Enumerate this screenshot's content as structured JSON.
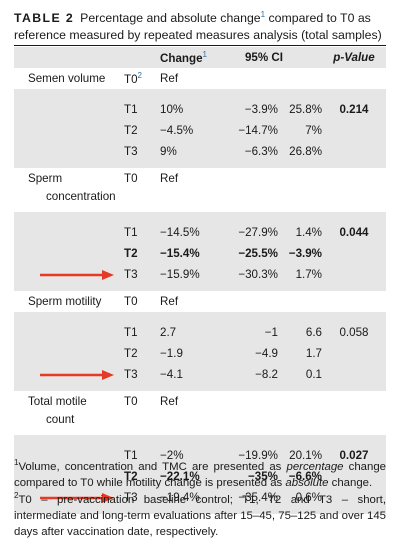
{
  "caption": {
    "label": "TABLE 2",
    "text_a": "Percentage and absolute change",
    "sup": "1",
    "text_b": " compared to T0 as reference measured by repeated measures analysis (total samples)"
  },
  "header": {
    "change": "Change",
    "change_sup": "1",
    "ci": "95% CI",
    "p": "p-Value"
  },
  "groups": [
    {
      "name": "Semen volume",
      "ref_time": "T0",
      "ref_time_sup": "2",
      "ref_label": "Ref",
      "rows": [
        {
          "time": "T1",
          "change": "10%",
          "ci_low": "−3.9%",
          "ci_high": "25.8%",
          "p": "0.214",
          "bold": false
        },
        {
          "time": "T2",
          "change": "−4.5%",
          "ci_low": "−14.7%",
          "ci_high": "7%",
          "p": "",
          "bold": false
        },
        {
          "time": "T3",
          "change": "9%",
          "ci_low": "−6.3%",
          "ci_high": "26.8%",
          "p": "",
          "bold": false
        }
      ]
    },
    {
      "name": "Sperm",
      "name2": "concentration",
      "ref_time": "T0",
      "ref_label": "Ref",
      "rows": [
        {
          "time": "T1",
          "change": "−14.5%",
          "ci_low": "−27.9%",
          "ci_high": "1.4%",
          "p": "0.044",
          "bold": false
        },
        {
          "time": "T2",
          "change": "−15.4%",
          "ci_low": "−25.5%",
          "ci_high": "−3.9%",
          "p": "",
          "bold": true
        },
        {
          "time": "T3",
          "change": "−15.9%",
          "ci_low": "−30.3%",
          "ci_high": "1.7%",
          "p": "",
          "bold": false
        }
      ]
    },
    {
      "name": "Sperm motility",
      "ref_time": "T0",
      "ref_label": "Ref",
      "rows": [
        {
          "time": "T1",
          "change": "2.7",
          "ci_low": "−1",
          "ci_high": "6.6",
          "p": "0.058",
          "bold": false
        },
        {
          "time": "T2",
          "change": "−1.9",
          "ci_low": "−4.9",
          "ci_high": "1.7",
          "p": "",
          "bold": false
        },
        {
          "time": "T3",
          "change": "−4.1",
          "ci_low": "−8.2",
          "ci_high": "0.1",
          "p": "",
          "bold": false
        }
      ]
    },
    {
      "name": "Total motile",
      "name2": "count",
      "ref_time": "T0",
      "ref_label": "Ref",
      "rows": [
        {
          "time": "T1",
          "change": "−2%",
          "ci_low": "−19.9%",
          "ci_high": "20.1%",
          "p": "0.027",
          "bold": false
        },
        {
          "time": "T2",
          "change": "−22.1%",
          "ci_low": "−35%",
          "ci_high": "−6.6%",
          "p": "",
          "bold": true
        },
        {
          "time": "T3",
          "change": "−19.4%",
          "ci_low": "−35.4%",
          "ci_high": "0.6%",
          "p": "",
          "bold": false
        }
      ]
    }
  ],
  "colors": {
    "arrow": "#e53a25",
    "shade": "#e6e6e6",
    "sup_link": "#2f6fa6"
  },
  "footnotes": {
    "n1_sup": "1",
    "n1_a": "Volume, concentration and TMC are presented as ",
    "n1_em1": "percentage",
    "n1_b": " change compared to T0 while motility change is presented as ",
    "n1_em2": "absolute",
    "n1_c": " change.",
    "n2_sup": "2",
    "n2_text": "T0 – pre-vaccination baseline control; T1, T2 and T3 – short, intermediate and long-term evaluations after 15–45, 75–125 and over 145 days after vaccination date, respectively."
  }
}
